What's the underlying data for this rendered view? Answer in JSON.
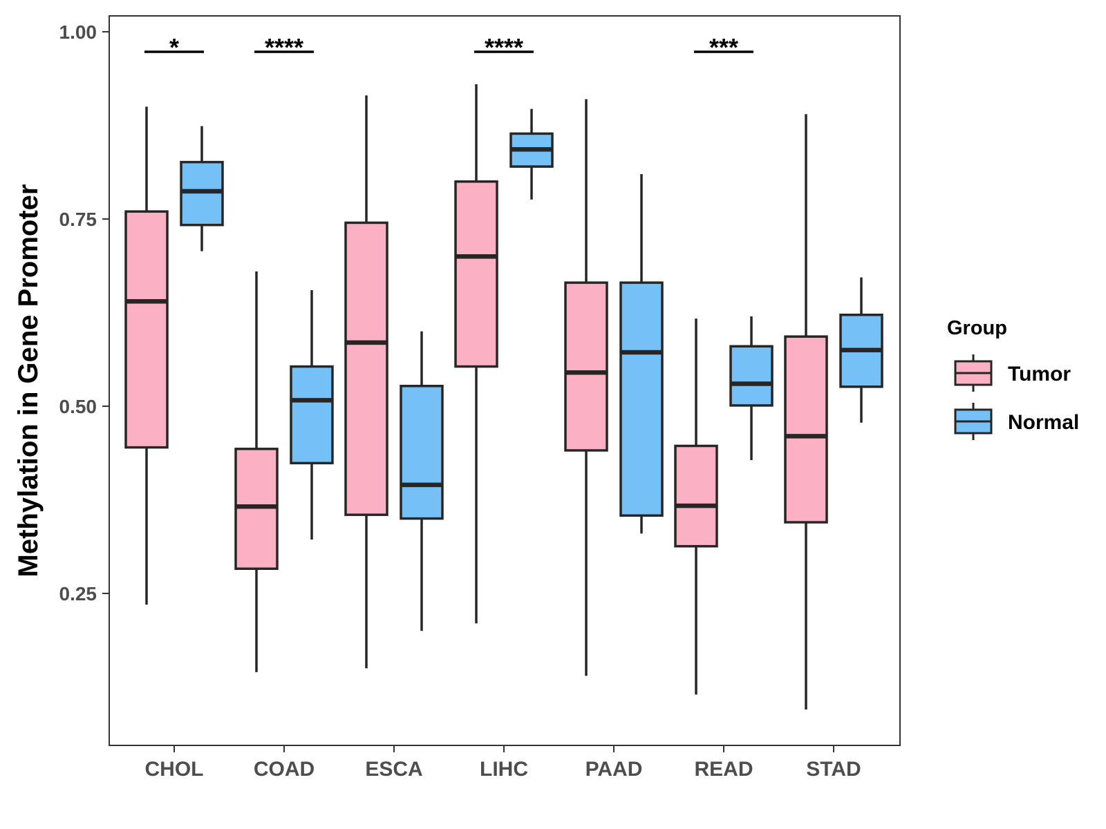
{
  "chart_data": {
    "type": "boxplot",
    "title": "",
    "xlabel": "",
    "ylabel": "Methylation in Gene Promoter",
    "ylim": [
      0.05,
      1.02
    ],
    "yticks": [
      0.25,
      0.5,
      0.75,
      1.0
    ],
    "ytick_labels": [
      "0.25",
      "0.50",
      "0.75",
      "1.00"
    ],
    "categories": [
      "CHOL",
      "COAD",
      "ESCA",
      "LIHC",
      "PAAD",
      "READ",
      "STAD"
    ],
    "legend": {
      "title": "Group",
      "position": "right",
      "entries": [
        {
          "name": "Tumor",
          "color": "#fbb0c3"
        },
        {
          "name": "Normal",
          "color": "#76c0f8"
        }
      ]
    },
    "series": [
      {
        "name": "Tumor",
        "color": "#fbb0c3",
        "boxes": [
          {
            "min": 0.235,
            "q1": 0.445,
            "median": 0.64,
            "q3": 0.76,
            "max": 0.9
          },
          {
            "min": 0.145,
            "q1": 0.283,
            "median": 0.366,
            "q3": 0.443,
            "max": 0.68
          },
          {
            "min": 0.15,
            "q1": 0.355,
            "median": 0.585,
            "q3": 0.745,
            "max": 0.915
          },
          {
            "min": 0.21,
            "q1": 0.553,
            "median": 0.7,
            "q3": 0.8,
            "max": 0.93
          },
          {
            "min": 0.14,
            "q1": 0.441,
            "median": 0.545,
            "q3": 0.665,
            "max": 0.91
          },
          {
            "min": 0.115,
            "q1": 0.313,
            "median": 0.367,
            "q3": 0.447,
            "max": 0.617
          },
          {
            "min": 0.095,
            "q1": 0.345,
            "median": 0.46,
            "q3": 0.593,
            "max": 0.89
          }
        ]
      },
      {
        "name": "Normal",
        "color": "#76c0f8",
        "boxes": [
          {
            "min": 0.707,
            "q1": 0.742,
            "median": 0.787,
            "q3": 0.826,
            "max": 0.874
          },
          {
            "min": 0.322,
            "q1": 0.424,
            "median": 0.508,
            "q3": 0.553,
            "max": 0.655
          },
          {
            "min": 0.2,
            "q1": 0.35,
            "median": 0.395,
            "q3": 0.527,
            "max": 0.6
          },
          {
            "min": 0.776,
            "q1": 0.82,
            "median": 0.843,
            "q3": 0.864,
            "max": 0.897
          },
          {
            "min": 0.33,
            "q1": 0.354,
            "median": 0.572,
            "q3": 0.665,
            "max": 0.81
          },
          {
            "min": 0.428,
            "q1": 0.501,
            "median": 0.53,
            "q3": 0.58,
            "max": 0.62
          },
          {
            "min": 0.478,
            "q1": 0.526,
            "median": 0.575,
            "q3": 0.622,
            "max": 0.672
          }
        ]
      }
    ],
    "significance": [
      {
        "category": "CHOL",
        "label": "*"
      },
      {
        "category": "COAD",
        "label": "****"
      },
      {
        "category": "LIHC",
        "label": "****"
      },
      {
        "category": "READ",
        "label": "***"
      }
    ]
  },
  "colors": {
    "axis": "#333333",
    "box_stroke": "#262626"
  }
}
